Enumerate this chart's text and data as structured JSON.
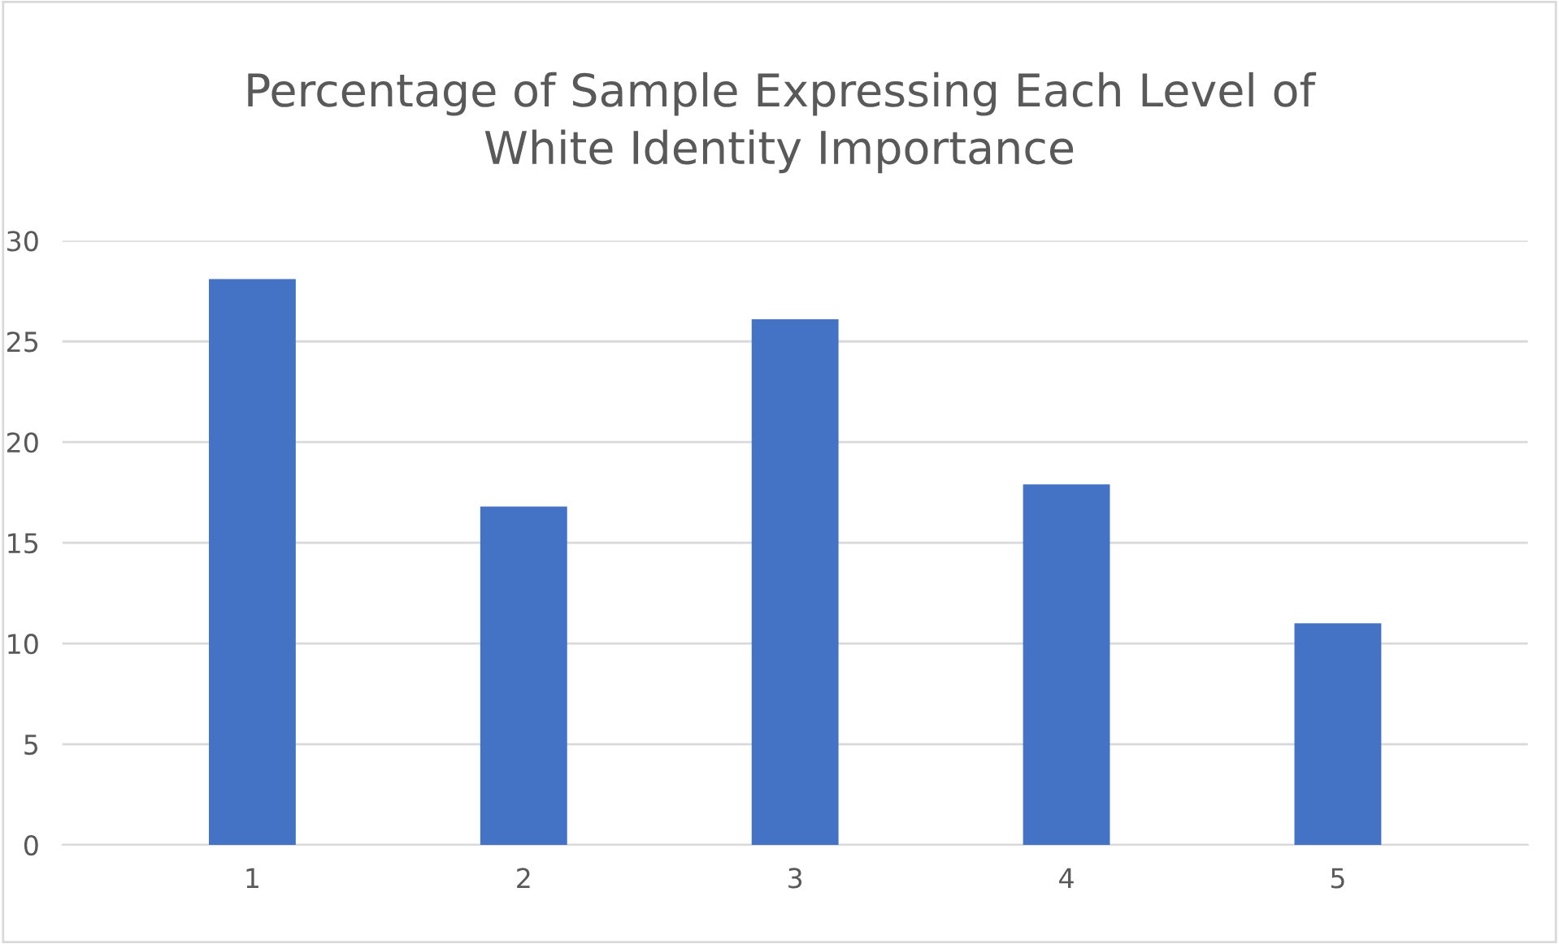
{
  "chart_data": {
    "type": "bar",
    "title": "Percentage of Sample Expressing Each Level of\nWhite Identity Importance",
    "categories": [
      "1",
      "2",
      "3",
      "4",
      "5"
    ],
    "values": [
      28.1,
      16.8,
      26.1,
      17.9,
      11.0
    ],
    "color": "#4472c4",
    "ylim": [
      0,
      30
    ],
    "yticks": [
      0,
      5,
      10,
      15,
      20,
      25,
      30
    ],
    "grid": "y",
    "legend": false
  }
}
